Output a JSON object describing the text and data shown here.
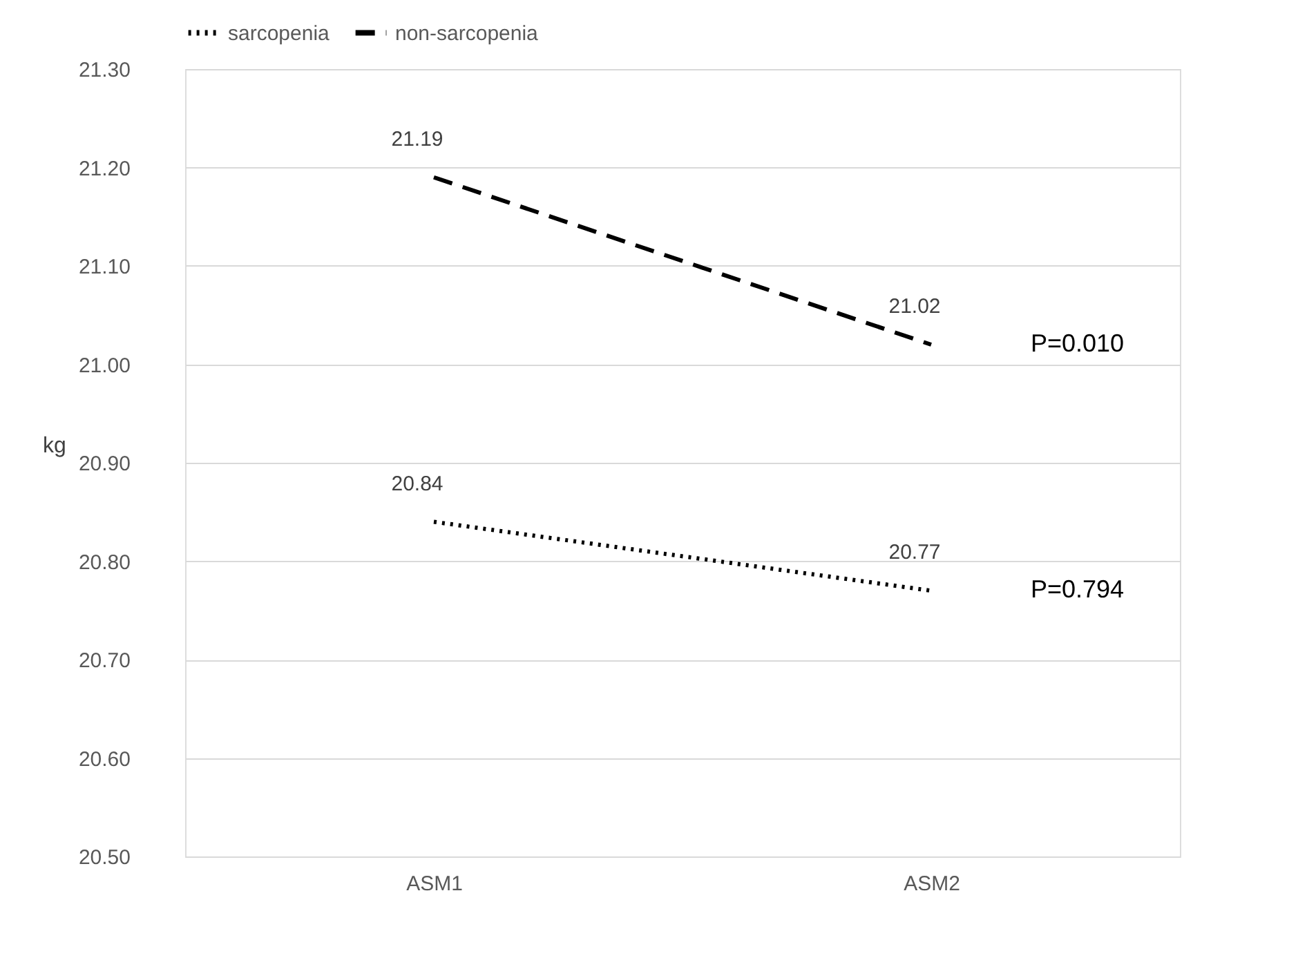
{
  "chart_data": {
    "type": "line",
    "ylabel": "kg",
    "categories": [
      "ASM1",
      "ASM2"
    ],
    "series": [
      {
        "name": "sarcopenia",
        "color": "#000000",
        "line_style": "dotted",
        "values": [
          20.84,
          20.77
        ]
      },
      {
        "name": "non-sarcopenia",
        "color": "#000000",
        "line_style": "dashed",
        "values": [
          21.19,
          21.02
        ]
      }
    ],
    "ylim": [
      20.5,
      21.3
    ],
    "yticks": [
      {
        "value": 20.5,
        "label": "20.50"
      },
      {
        "value": 20.6,
        "label": "20.60"
      },
      {
        "value": 20.7,
        "label": "20.70"
      },
      {
        "value": 20.8,
        "label": "20.80"
      },
      {
        "value": 20.9,
        "label": "20.90"
      },
      {
        "value": 21.0,
        "label": "21.00"
      },
      {
        "value": 21.1,
        "label": "21.10"
      },
      {
        "value": 21.2,
        "label": "21.20"
      },
      {
        "value": 21.3,
        "label": "21.30"
      }
    ],
    "grid": "y",
    "legend": "top",
    "marker": "none",
    "data_labels": true,
    "annotations": [
      "P=0.010",
      "P=0.794"
    ]
  }
}
